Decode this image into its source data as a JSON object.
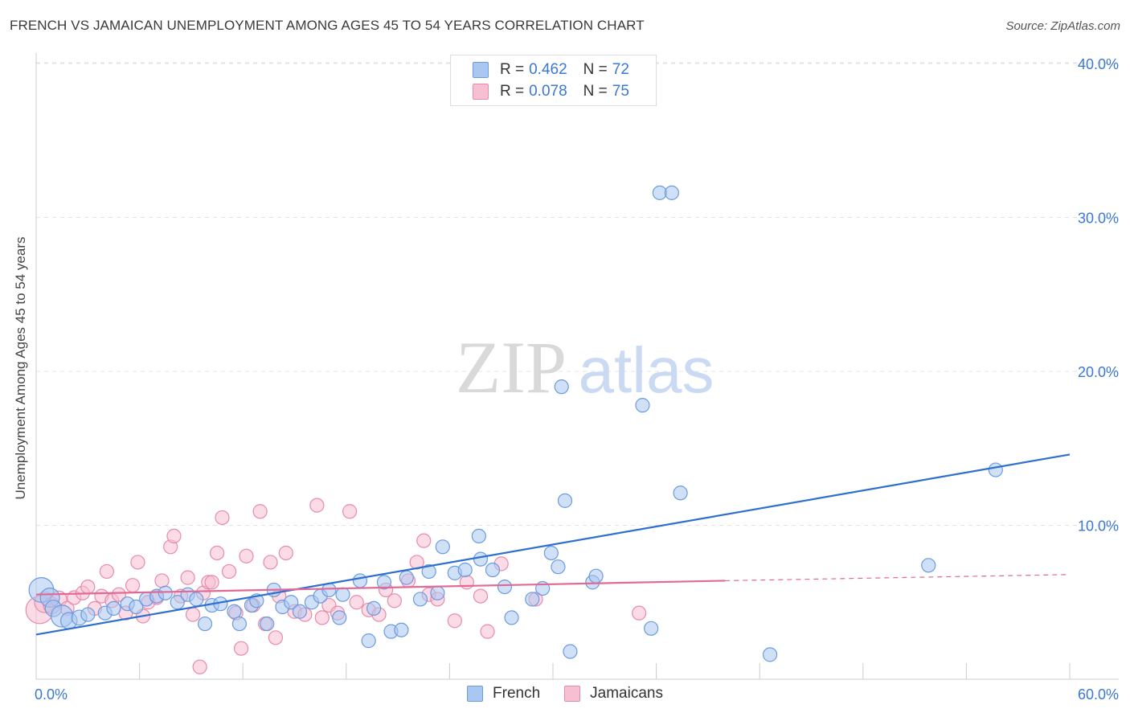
{
  "title": "FRENCH VS JAMAICAN UNEMPLOYMENT AMONG AGES 45 TO 54 YEARS CORRELATION CHART",
  "source": "Source: ZipAtlas.com",
  "watermark": {
    "zip": "ZIP",
    "atlas": "atlas"
  },
  "legend_top": [
    {
      "r_label": "R =",
      "r_value": "0.462",
      "n_label": "N =",
      "n_value": "72",
      "color": "#a9c7f0",
      "border": "#6b9be0"
    },
    {
      "r_label": "R =",
      "r_value": "0.078",
      "n_label": "N =",
      "n_value": "75",
      "color": "#f7c0d2",
      "border": "#e88aaa"
    }
  ],
  "legend_bottom": [
    {
      "label": "French",
      "color": "#a9c7f0",
      "border": "#6b9be0"
    },
    {
      "label": "Jamaicans",
      "color": "#f7c0d2",
      "border": "#e88aaa"
    }
  ],
  "colors": {
    "french_fill": "#a9c7f0",
    "french_stroke": "#6b9be0",
    "french_line": "#2f6fcf",
    "jam_fill": "#f7c0d2",
    "jam_stroke": "#e88aaa",
    "jam_line": "#e06a95",
    "tick_label": "#3a78d4"
  },
  "chart_data": {
    "type": "scatter",
    "title": "FRENCH VS JAMAICAN UNEMPLOYMENT AMONG AGES 45 TO 54 YEARS CORRELATION CHART",
    "xlabel": "",
    "ylabel": "Unemployment Among Ages 45 to 54 years",
    "xlim": [
      0,
      60
    ],
    "ylim": [
      0,
      42
    ],
    "x_tick_labels": [
      "0.0%",
      "60.0%"
    ],
    "y_ticks": [
      10,
      20,
      30,
      40
    ],
    "y_tick_labels": [
      "10.0%",
      "20.0%",
      "30.0%",
      "40.0%"
    ],
    "grid": true,
    "legend_position": "top-center",
    "series": [
      {
        "name": "French",
        "r": 0.462,
        "n": 72,
        "trend": {
          "x0": 0,
          "y0": 2.9,
          "x1": 60,
          "y1": 14.6
        },
        "points": [
          [
            0.3,
            5.8,
            1.8
          ],
          [
            0.8,
            5.3,
            1.4
          ],
          [
            1.0,
            4.6,
            1.2
          ],
          [
            1.5,
            4.1,
            1.6
          ],
          [
            1.9,
            3.8,
            1.2
          ],
          [
            2.5,
            4.0,
            1.1
          ],
          [
            3.0,
            4.2,
            1.0
          ],
          [
            4.0,
            4.3,
            1.0
          ],
          [
            4.5,
            4.6,
            1.0
          ],
          [
            5.3,
            4.9,
            1.0
          ],
          [
            5.8,
            4.7,
            1.0
          ],
          [
            6.4,
            5.2,
            1.0
          ],
          [
            7.0,
            5.4,
            1.0
          ],
          [
            7.5,
            5.6,
            1.0
          ],
          [
            8.2,
            5.0,
            1.0
          ],
          [
            8.8,
            5.5,
            1.0
          ],
          [
            9.3,
            5.2,
            1.0
          ],
          [
            9.8,
            3.6,
            1.0
          ],
          [
            10.2,
            4.8,
            1.0
          ],
          [
            10.7,
            4.9,
            1.0
          ],
          [
            11.5,
            4.4,
            1.0
          ],
          [
            11.8,
            3.6,
            1.0
          ],
          [
            12.5,
            4.8,
            1.0
          ],
          [
            12.8,
            5.1,
            1.0
          ],
          [
            13.4,
            3.6,
            1.0
          ],
          [
            13.8,
            5.8,
            1.0
          ],
          [
            14.3,
            4.7,
            1.0
          ],
          [
            14.8,
            5.0,
            1.0
          ],
          [
            15.3,
            4.4,
            1.0
          ],
          [
            16.0,
            5.0,
            1.0
          ],
          [
            16.5,
            5.4,
            1.0
          ],
          [
            17.0,
            5.8,
            1.0
          ],
          [
            17.6,
            4.0,
            1.0
          ],
          [
            17.8,
            5.5,
            1.0
          ],
          [
            18.8,
            6.4,
            1.0
          ],
          [
            19.3,
            2.5,
            1.0
          ],
          [
            19.6,
            4.6,
            1.0
          ],
          [
            20.2,
            6.3,
            1.0
          ],
          [
            20.6,
            3.1,
            1.0
          ],
          [
            21.2,
            3.2,
            1.0
          ],
          [
            21.5,
            6.6,
            1.0
          ],
          [
            22.3,
            5.2,
            1.0
          ],
          [
            22.8,
            7.0,
            1.0
          ],
          [
            23.3,
            5.6,
            1.0
          ],
          [
            23.6,
            8.6,
            1.0
          ],
          [
            24.3,
            6.9,
            1.0
          ],
          [
            24.9,
            7.1,
            1.0
          ],
          [
            25.7,
            9.3,
            1.0
          ],
          [
            25.8,
            7.8,
            1.0
          ],
          [
            26.5,
            7.1,
            1.0
          ],
          [
            27.2,
            6.0,
            1.0
          ],
          [
            27.6,
            4.0,
            1.0
          ],
          [
            28.8,
            5.2,
            1.0
          ],
          [
            29.4,
            5.9,
            1.0
          ],
          [
            29.9,
            8.2,
            1.0
          ],
          [
            30.3,
            7.3,
            1.0
          ],
          [
            30.5,
            19.0,
            1.0
          ],
          [
            30.7,
            11.6,
            1.0
          ],
          [
            31.0,
            1.8,
            1.0
          ],
          [
            32.3,
            6.3,
            1.0
          ],
          [
            32.5,
            6.7,
            1.0
          ],
          [
            35.2,
            17.8,
            1.0
          ],
          [
            35.7,
            3.3,
            1.0
          ],
          [
            36.2,
            31.6,
            1.0
          ],
          [
            36.9,
            31.6,
            1.0
          ],
          [
            37.4,
            12.1,
            1.0
          ],
          [
            42.6,
            1.6,
            1.0
          ],
          [
            51.8,
            7.4,
            1.0
          ],
          [
            55.7,
            13.6,
            1.0
          ]
        ]
      },
      {
        "name": "Jamaicans",
        "r": 0.078,
        "n": 75,
        "trend": {
          "x0": 0,
          "y0": 5.5,
          "x1": 40,
          "y1": 6.4,
          "dash_to_x": 60,
          "dash_to_y": 6.8
        },
        "points": [
          [
            0.2,
            4.5,
            2.0
          ],
          [
            0.5,
            5.0,
            1.5
          ],
          [
            0.9,
            4.8,
            1.2
          ],
          [
            1.3,
            5.2,
            1.2
          ],
          [
            1.8,
            4.6,
            1.0
          ],
          [
            2.2,
            5.3,
            1.0
          ],
          [
            2.7,
            5.6,
            1.0
          ],
          [
            3.0,
            6.0,
            1.0
          ],
          [
            3.4,
            4.6,
            1.0
          ],
          [
            3.8,
            5.4,
            1.0
          ],
          [
            4.1,
            7.0,
            1.0
          ],
          [
            4.4,
            5.1,
            1.0
          ],
          [
            4.8,
            5.5,
            1.0
          ],
          [
            5.2,
            4.3,
            1.0
          ],
          [
            5.6,
            6.1,
            1.0
          ],
          [
            5.9,
            7.6,
            1.0
          ],
          [
            6.2,
            4.1,
            1.0
          ],
          [
            6.5,
            5.0,
            1.0
          ],
          [
            7.0,
            5.3,
            1.0
          ],
          [
            7.3,
            6.4,
            1.0
          ],
          [
            7.8,
            8.6,
            1.0
          ],
          [
            8.0,
            9.3,
            1.0
          ],
          [
            8.4,
            5.4,
            1.0
          ],
          [
            8.8,
            6.6,
            1.0
          ],
          [
            9.1,
            4.2,
            1.0
          ],
          [
            9.5,
            0.8,
            1.0
          ],
          [
            9.7,
            5.6,
            1.0
          ],
          [
            10.0,
            6.3,
            1.0
          ],
          [
            10.2,
            6.3,
            1.0
          ],
          [
            10.5,
            8.2,
            1.0
          ],
          [
            10.8,
            10.5,
            1.0
          ],
          [
            11.2,
            7.0,
            1.0
          ],
          [
            11.6,
            4.3,
            1.0
          ],
          [
            11.9,
            2.0,
            1.0
          ],
          [
            12.2,
            8.0,
            1.0
          ],
          [
            12.6,
            4.8,
            1.0
          ],
          [
            13.0,
            10.9,
            1.0
          ],
          [
            13.3,
            3.6,
            1.0
          ],
          [
            13.6,
            7.6,
            1.0
          ],
          [
            13.9,
            2.7,
            1.0
          ],
          [
            14.1,
            5.4,
            1.0
          ],
          [
            14.5,
            8.2,
            1.0
          ],
          [
            15.0,
            4.4,
            1.0
          ],
          [
            15.6,
            4.2,
            1.0
          ],
          [
            16.3,
            11.3,
            1.0
          ],
          [
            16.6,
            4.0,
            1.0
          ],
          [
            17.0,
            4.8,
            1.0
          ],
          [
            17.5,
            4.3,
            1.0
          ],
          [
            18.2,
            10.9,
            1.0
          ],
          [
            18.6,
            5.0,
            1.0
          ],
          [
            19.3,
            4.5,
            1.0
          ],
          [
            19.9,
            4.2,
            1.0
          ],
          [
            20.3,
            5.8,
            1.0
          ],
          [
            20.8,
            5.1,
            1.0
          ],
          [
            21.6,
            6.4,
            1.0
          ],
          [
            22.1,
            7.6,
            1.0
          ],
          [
            22.5,
            9.0,
            1.0
          ],
          [
            22.8,
            5.5,
            1.0
          ],
          [
            23.3,
            5.2,
            1.0
          ],
          [
            24.3,
            3.8,
            1.0
          ],
          [
            25.0,
            6.3,
            1.0
          ],
          [
            25.8,
            5.4,
            1.0
          ],
          [
            26.2,
            3.1,
            1.0
          ],
          [
            27.0,
            7.5,
            1.0
          ],
          [
            29.0,
            5.2,
            1.0
          ],
          [
            35.0,
            4.3,
            1.0
          ]
        ]
      }
    ]
  }
}
